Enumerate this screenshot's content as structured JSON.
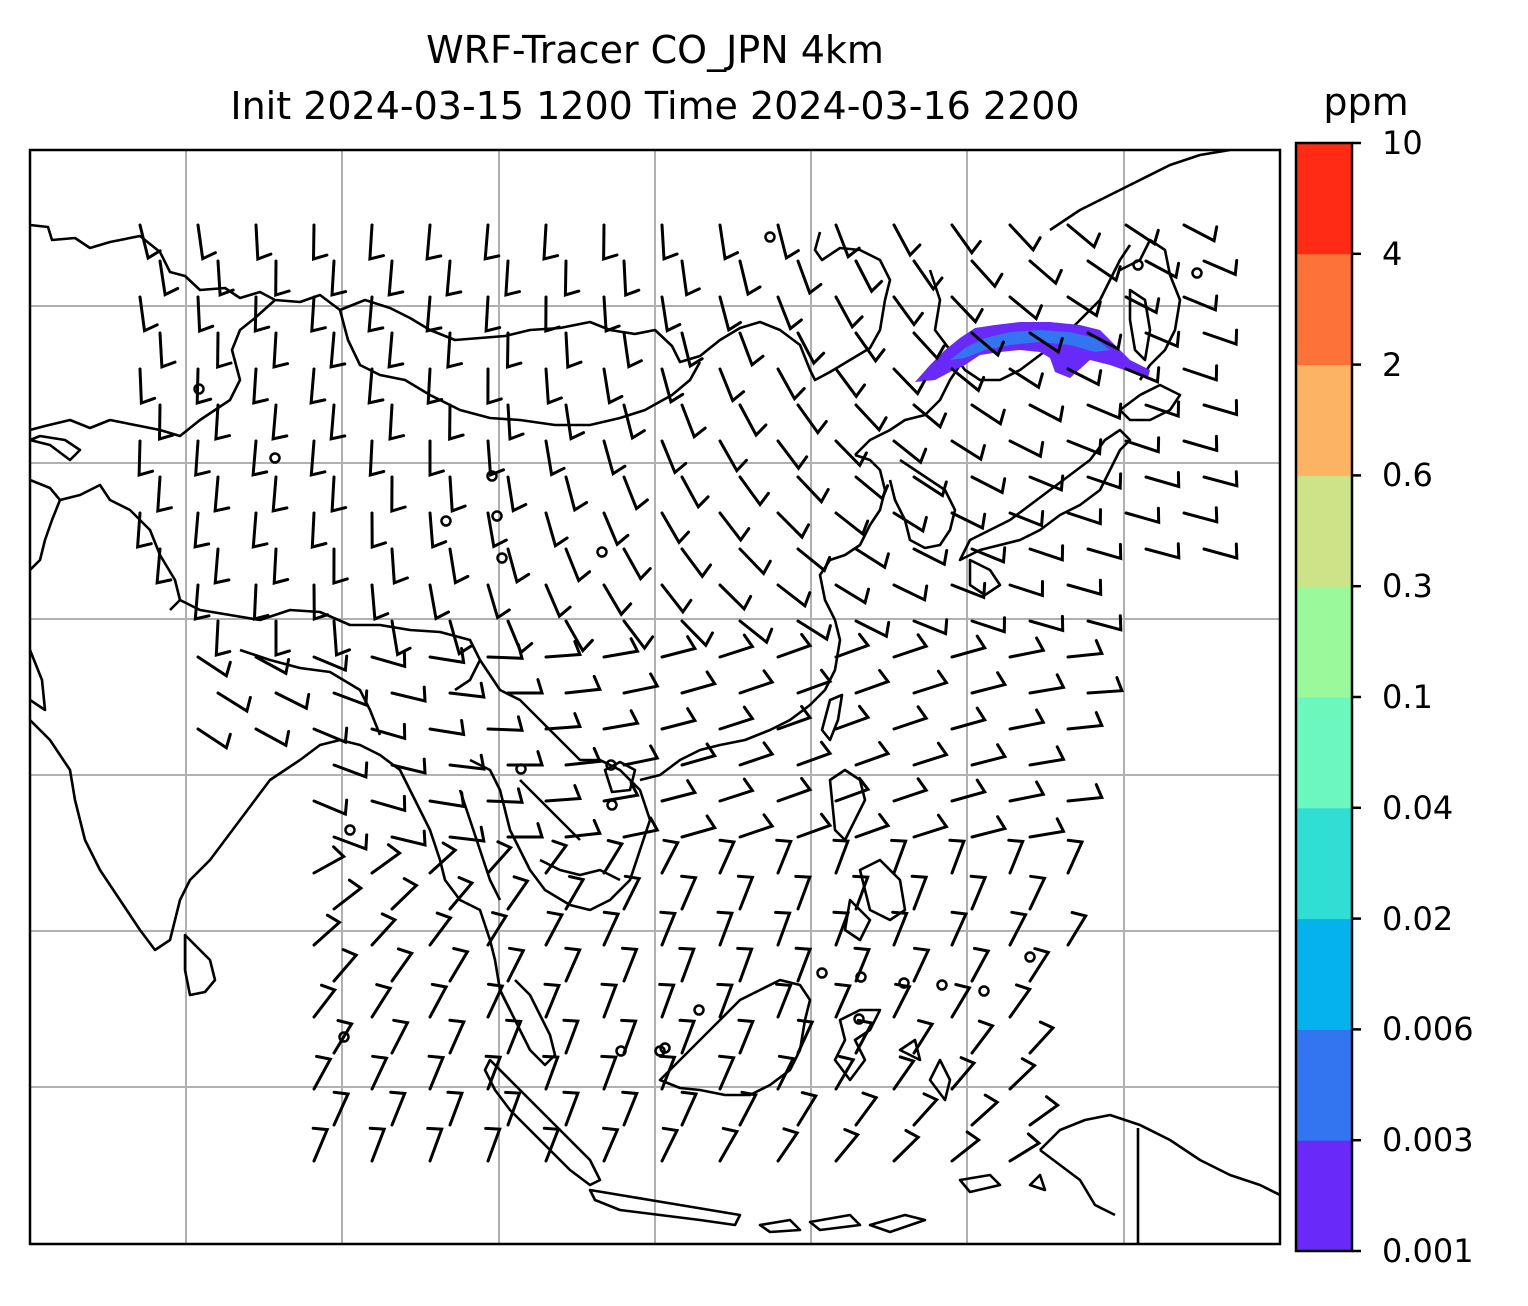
{
  "title": {
    "line1": "WRF-Tracer CO_JPN 4km",
    "line2": "Init 2024-03-15 1200 Time 2024-03-16 2200"
  },
  "colorbar": {
    "unit": "ppm",
    "ticks": [
      "0.001",
      "0.003",
      "0.006",
      "0.02",
      "0.04",
      "0.1",
      "0.3",
      "0.6",
      "2",
      "4",
      "10"
    ],
    "colors": [
      "#6929f9",
      "#3374f0",
      "#05b2ec",
      "#31ded3",
      "#6bf7bd",
      "#9af99a",
      "#cee287",
      "#fcb363",
      "#fc7238",
      "#ff2b15"
    ]
  },
  "map": {
    "gridlines": true,
    "gridline_color": "#b0b0b0",
    "coastline_color": "#000000",
    "plume": {
      "description_color": "#5a3cf5",
      "level_range": [
        "0.001",
        "0.006"
      ]
    }
  }
}
